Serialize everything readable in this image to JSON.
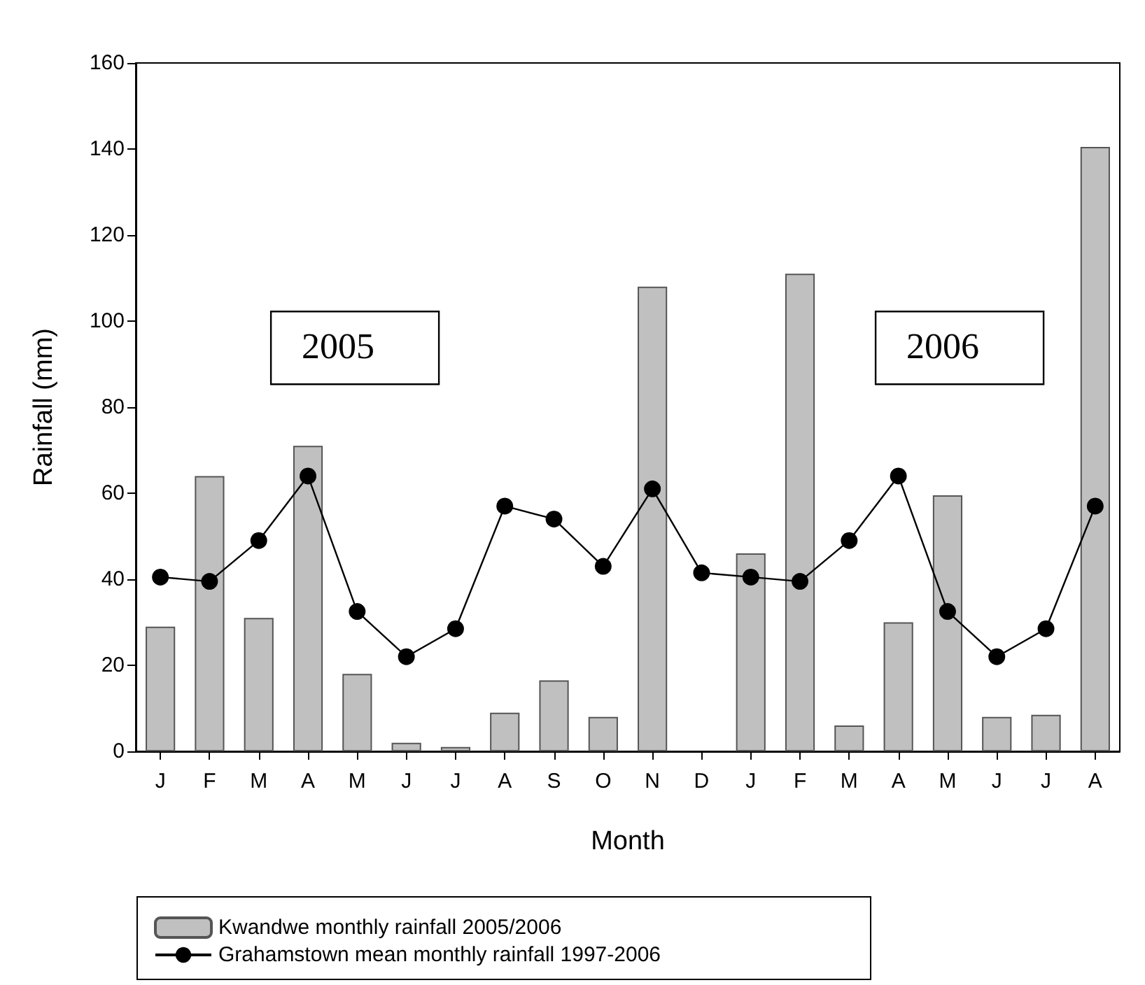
{
  "chart_data": {
    "type": "bar",
    "xlabel": "Month",
    "ylabel": "Rainfall (mm)",
    "categories": [
      "J",
      "F",
      "M",
      "A",
      "M",
      "J",
      "J",
      "A",
      "S",
      "O",
      "N",
      "D",
      "J",
      "F",
      "M",
      "A",
      "M",
      "J",
      "J",
      "A"
    ],
    "series": [
      {
        "name": "Kwandwe monthly rainfall 2005/2006",
        "color": "#c0c0c0",
        "values": [
          29,
          64,
          31,
          71,
          18,
          2,
          1,
          9,
          16.5,
          8,
          108,
          null,
          46,
          111,
          6,
          30,
          59.5,
          8,
          8.5,
          140.5
        ]
      },
      {
        "name": "Grahamstown mean monthly rainfall 1997-2006",
        "type": "line",
        "color": "#000000",
        "marker": "circle",
        "line_style": "solid",
        "values": [
          40.5,
          39.5,
          49,
          64,
          32.5,
          22,
          28.5,
          57,
          54,
          43,
          61,
          41.5,
          40.5,
          39.5,
          49,
          64,
          32.5,
          22,
          28.5,
          57
        ]
      }
    ],
    "ylim": [
      0,
      160
    ],
    "yticks": [
      0,
      20,
      40,
      60,
      80,
      100,
      120,
      140,
      160
    ],
    "grid": false,
    "legend": "bottom left",
    "annotations": [
      "2005",
      "2006"
    ]
  }
}
